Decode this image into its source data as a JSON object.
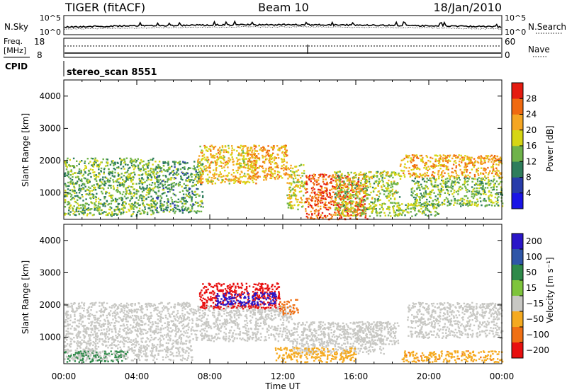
{
  "header": {
    "station": "TIGER (fitACF)",
    "beam": "Beam 10",
    "date": "18/Jan/2010"
  },
  "strip_labels": {
    "nsky": "N.Sky",
    "nsearch": "N.Search",
    "freq_line1": "Freq.",
    "freq_line2": "[MHz]",
    "nave": "Nave",
    "cpid": "CPID",
    "cpid_value": "stereo_scan 8551",
    "noise_ticks": [
      "10^5",
      "10^0"
    ],
    "freq_ticks": [
      "18",
      "8"
    ],
    "nave_ticks": [
      "60",
      "0"
    ]
  },
  "colors": {
    "power_scale": [
      "#1a14e6",
      "#283caa",
      "#2e7d5c",
      "#6fb34a",
      "#d6d614",
      "#f5a623",
      "#f06a10",
      "#e51b10"
    ],
    "velocity_scale": [
      "#2a16c8",
      "#2f56a8",
      "#2f8a4a",
      "#7ec43c",
      "#c8c8c4",
      "#f5aa20",
      "#f07014",
      "#e81010"
    ]
  },
  "chart_data": [
    {
      "type": "heatmap",
      "panel": "power",
      "xlabel": "Time UT",
      "ylabel": "Slant Range [km]",
      "x_ticks": [
        "00:00",
        "04:00",
        "08:00",
        "12:00",
        "16:00",
        "20:00",
        "00:00"
      ],
      "xlim": [
        0,
        24
      ],
      "y_ticks": [
        1000,
        2000,
        3000,
        4000
      ],
      "ylim": [
        180,
        4500
      ],
      "colorbar_label": "Power [dB]",
      "colorbar_ticks": [
        4,
        8,
        12,
        16,
        20,
        24,
        28
      ],
      "colorbar_range": [
        0,
        32
      ],
      "regions": [
        {
          "t0": 0.0,
          "t1": 5.0,
          "r0": 300,
          "r1": 2100,
          "level": 14
        },
        {
          "t0": 5.0,
          "t1": 7.6,
          "r0": 400,
          "r1": 2000,
          "level": 12
        },
        {
          "t0": 7.3,
          "t1": 10.5,
          "r0": 1300,
          "r1": 2500,
          "level": 20
        },
        {
          "t0": 10.0,
          "t1": 12.2,
          "r0": 1400,
          "r1": 2500,
          "level": 22
        },
        {
          "t0": 12.2,
          "t1": 13.2,
          "r0": 500,
          "r1": 1900,
          "level": 18
        },
        {
          "t0": 13.2,
          "t1": 16.6,
          "r0": 200,
          "r1": 1600,
          "level": 27
        },
        {
          "t0": 14.8,
          "t1": 18.4,
          "r0": 300,
          "r1": 1700,
          "level": 16
        },
        {
          "t0": 18.2,
          "t1": 20.5,
          "r0": 300,
          "r1": 700,
          "level": 15
        },
        {
          "t0": 18.4,
          "t1": 24.0,
          "r0": 1500,
          "r1": 2200,
          "level": 22
        },
        {
          "t0": 19.0,
          "t1": 24.0,
          "r0": 600,
          "r1": 1500,
          "level": 14
        }
      ]
    },
    {
      "type": "heatmap",
      "panel": "velocity",
      "xlabel": "Time UT",
      "ylabel": "Slant Range [km]",
      "x_ticks": [
        "00:00",
        "04:00",
        "08:00",
        "12:00",
        "16:00",
        "20:00",
        "00:00"
      ],
      "xlim": [
        0,
        24
      ],
      "y_ticks": [
        1000,
        2000,
        3000,
        4000
      ],
      "ylim": [
        180,
        4500
      ],
      "colorbar_label": "Velocity [m s⁻¹]",
      "colorbar_ticks": [
        "200",
        "100",
        "50",
        "15",
        "−15",
        "−50",
        "−100",
        "−200"
      ],
      "colorbar_values": [
        200,
        100,
        50,
        15,
        -15,
        -50,
        -100,
        -200
      ],
      "regions": [
        {
          "t0": 0.0,
          "t1": 7.0,
          "r0": 300,
          "r1": 2100,
          "level": 0
        },
        {
          "t0": 0.0,
          "t1": 3.5,
          "r0": 250,
          "r1": 600,
          "level": 20
        },
        {
          "t0": 7.0,
          "t1": 12.5,
          "r0": 900,
          "r1": 2000,
          "level": 0
        },
        {
          "t0": 7.4,
          "t1": 11.8,
          "r0": 1900,
          "r1": 2700,
          "level": -150
        },
        {
          "t0": 8.3,
          "t1": 11.6,
          "r0": 2000,
          "r1": 2400,
          "level": 180
        },
        {
          "t0": 11.8,
          "t1": 12.8,
          "r0": 1700,
          "r1": 2200,
          "level": -60
        },
        {
          "t0": 12.5,
          "t1": 17.5,
          "r0": 500,
          "r1": 1500,
          "level": 0
        },
        {
          "t0": 11.5,
          "t1": 16.0,
          "r0": 250,
          "r1": 700,
          "level": -30
        },
        {
          "t0": 16.0,
          "t1": 18.3,
          "r0": 800,
          "r1": 1500,
          "level": 0
        },
        {
          "t0": 18.5,
          "t1": 24.0,
          "r0": 250,
          "r1": 600,
          "level": -40
        },
        {
          "t0": 18.8,
          "t1": 24.0,
          "r0": 1000,
          "r1": 2100,
          "level": 0
        }
      ]
    }
  ]
}
